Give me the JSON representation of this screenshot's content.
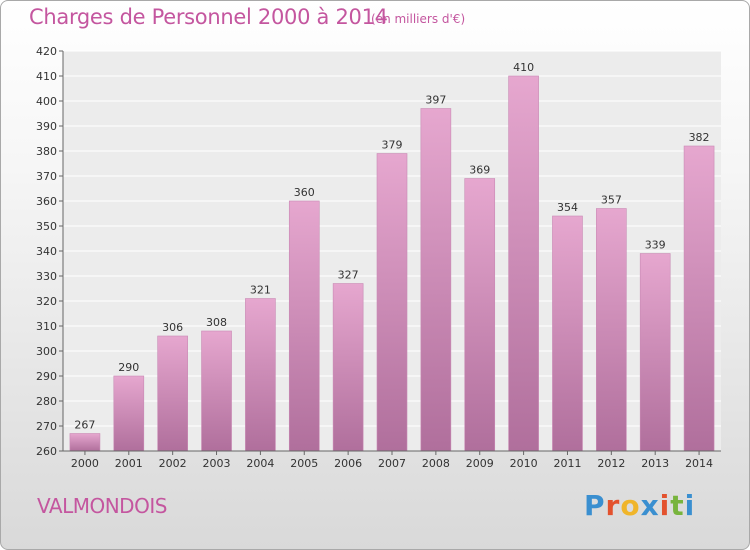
{
  "header": {
    "title": "Charges de Personnel 2000 à 2014",
    "subtitle": "(en milliers d'€)"
  },
  "footer": {
    "commune": "VALMONDOIS",
    "logo": "Proxiti"
  },
  "colors": {
    "title": "#c4569f",
    "bar_top": "#e6a7cf",
    "bar_bottom": "#b06f9c",
    "logo_letters": [
      "#3a8fd0",
      "#e3522e",
      "#f0b52a",
      "#3a8fd0",
      "#e3522e",
      "#78b43d",
      "#3a8fd0"
    ]
  },
  "chart_data": {
    "type": "bar",
    "categories": [
      "2000",
      "2001",
      "2002",
      "2003",
      "2004",
      "2005",
      "2006",
      "2007",
      "2008",
      "2009",
      "2010",
      "2011",
      "2012",
      "2013",
      "2014"
    ],
    "values": [
      267,
      290,
      306,
      308,
      321,
      360,
      327,
      379,
      397,
      369,
      410,
      354,
      357,
      339,
      382
    ],
    "ylim": [
      260,
      420
    ],
    "yticks": [
      260,
      270,
      280,
      290,
      300,
      310,
      320,
      330,
      340,
      350,
      360,
      370,
      380,
      390,
      400,
      410,
      420
    ],
    "grid": true,
    "xlabel": "",
    "ylabel": ""
  }
}
